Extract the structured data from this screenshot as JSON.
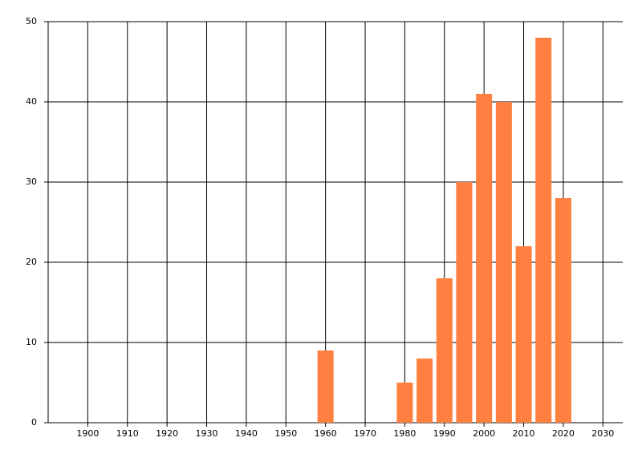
{
  "chart_data": {
    "type": "bar",
    "x": [
      1960,
      1980,
      1985,
      1990,
      1995,
      2000,
      2005,
      2010,
      2015,
      2020
    ],
    "values": [
      9,
      5,
      8,
      18,
      30,
      41,
      40,
      22,
      48,
      28
    ],
    "color": "#ff7f40",
    "xlim": [
      1890,
      2035
    ],
    "xticks": [
      1900,
      1910,
      1920,
      1930,
      1940,
      1950,
      1960,
      1970,
      1980,
      1990,
      2000,
      2010,
      2020,
      2030
    ],
    "ylim": [
      0,
      50
    ],
    "yticks": [
      0,
      10,
      20,
      30,
      40,
      50
    ],
    "grid": true
  }
}
